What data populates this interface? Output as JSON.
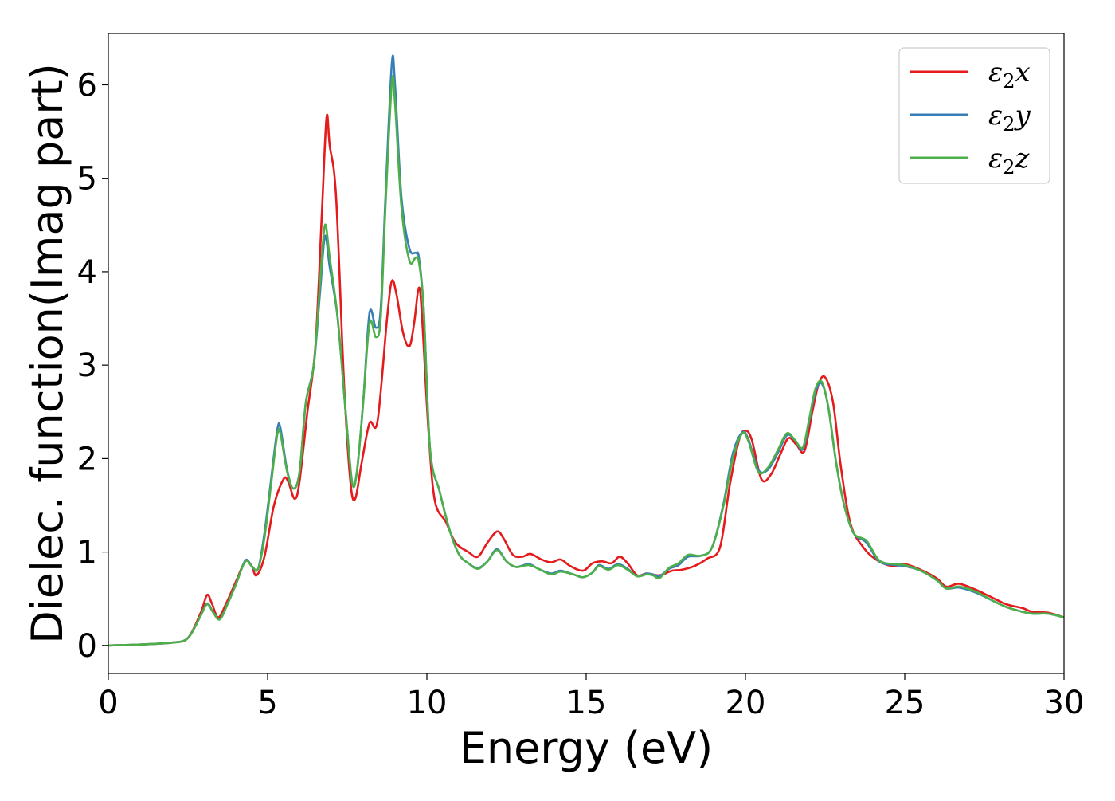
{
  "chart_data": {
    "type": "line",
    "title": "",
    "xlabel": "Energy (eV)",
    "ylabel": "Dielec. function(Imag part)",
    "xlim": [
      0,
      30
    ],
    "ylim": [
      -0.3,
      6.55
    ],
    "xticks": [
      0,
      5,
      10,
      15,
      20,
      25,
      30
    ],
    "yticks": [
      0,
      1,
      2,
      3,
      4,
      5,
      6
    ],
    "grid": false,
    "legend_position": "top-right",
    "series": [
      {
        "name": "ε₂x",
        "legend": {
          "base": "ε",
          "sub": "2",
          "suffix": "x"
        },
        "color": "#e41a1c",
        "points": [
          [
            0,
            0
          ],
          [
            1,
            0.01
          ],
          [
            2,
            0.03
          ],
          [
            2.5,
            0.08
          ],
          [
            2.9,
            0.35
          ],
          [
            3.1,
            0.54
          ],
          [
            3.25,
            0.45
          ],
          [
            3.45,
            0.3
          ],
          [
            3.7,
            0.45
          ],
          [
            4.0,
            0.68
          ],
          [
            4.3,
            0.9
          ],
          [
            4.5,
            0.85
          ],
          [
            4.65,
            0.75
          ],
          [
            4.9,
            0.95
          ],
          [
            5.2,
            1.5
          ],
          [
            5.5,
            1.78
          ],
          [
            5.65,
            1.75
          ],
          [
            5.85,
            1.57
          ],
          [
            6.0,
            1.75
          ],
          [
            6.25,
            2.5
          ],
          [
            6.5,
            3.2
          ],
          [
            6.7,
            4.6
          ],
          [
            6.85,
            5.65
          ],
          [
            6.95,
            5.35
          ],
          [
            7.15,
            4.8
          ],
          [
            7.4,
            2.8
          ],
          [
            7.6,
            1.75
          ],
          [
            7.75,
            1.57
          ],
          [
            7.95,
            1.95
          ],
          [
            8.2,
            2.38
          ],
          [
            8.45,
            2.4
          ],
          [
            8.75,
            3.5
          ],
          [
            8.9,
            3.9
          ],
          [
            9.05,
            3.75
          ],
          [
            9.25,
            3.35
          ],
          [
            9.45,
            3.2
          ],
          [
            9.6,
            3.45
          ],
          [
            9.75,
            3.83
          ],
          [
            9.85,
            3.5
          ],
          [
            10.05,
            2.3
          ],
          [
            10.25,
            1.55
          ],
          [
            10.6,
            1.32
          ],
          [
            10.9,
            1.1
          ],
          [
            11.3,
            1.0
          ],
          [
            11.6,
            0.95
          ],
          [
            11.9,
            1.1
          ],
          [
            12.2,
            1.22
          ],
          [
            12.4,
            1.15
          ],
          [
            12.7,
            0.97
          ],
          [
            13.0,
            0.95
          ],
          [
            13.25,
            0.98
          ],
          [
            13.6,
            0.92
          ],
          [
            13.9,
            0.89
          ],
          [
            14.2,
            0.92
          ],
          [
            14.5,
            0.85
          ],
          [
            14.9,
            0.8
          ],
          [
            15.2,
            0.88
          ],
          [
            15.5,
            0.9
          ],
          [
            15.8,
            0.88
          ],
          [
            16.05,
            0.95
          ],
          [
            16.3,
            0.88
          ],
          [
            16.6,
            0.75
          ],
          [
            16.9,
            0.77
          ],
          [
            17.3,
            0.75
          ],
          [
            17.7,
            0.8
          ],
          [
            18.0,
            0.81
          ],
          [
            18.4,
            0.85
          ],
          [
            18.8,
            0.93
          ],
          [
            19.2,
            1.05
          ],
          [
            19.5,
            1.7
          ],
          [
            19.8,
            2.2
          ],
          [
            20.0,
            2.3
          ],
          [
            20.2,
            2.2
          ],
          [
            20.5,
            1.78
          ],
          [
            20.8,
            1.83
          ],
          [
            21.1,
            2.05
          ],
          [
            21.35,
            2.22
          ],
          [
            21.6,
            2.15
          ],
          [
            21.85,
            2.08
          ],
          [
            22.1,
            2.5
          ],
          [
            22.3,
            2.8
          ],
          [
            22.5,
            2.87
          ],
          [
            22.75,
            2.6
          ],
          [
            23.0,
            1.9
          ],
          [
            23.3,
            1.3
          ],
          [
            23.7,
            1.05
          ],
          [
            24.1,
            0.92
          ],
          [
            24.6,
            0.85
          ],
          [
            25.0,
            0.87
          ],
          [
            25.5,
            0.81
          ],
          [
            26.0,
            0.72
          ],
          [
            26.3,
            0.63
          ],
          [
            26.7,
            0.66
          ],
          [
            27.2,
            0.6
          ],
          [
            27.7,
            0.52
          ],
          [
            28.2,
            0.44
          ],
          [
            28.7,
            0.4
          ],
          [
            29.0,
            0.36
          ],
          [
            29.5,
            0.35
          ],
          [
            30.0,
            0.3
          ]
        ]
      },
      {
        "name": "ε₂y",
        "legend": {
          "base": "ε",
          "sub": "2",
          "suffix": "y"
        },
        "color": "#377eb8",
        "points": [
          [
            0,
            0
          ],
          [
            1,
            0.01
          ],
          [
            2,
            0.03
          ],
          [
            2.5,
            0.08
          ],
          [
            2.9,
            0.32
          ],
          [
            3.1,
            0.45
          ],
          [
            3.3,
            0.35
          ],
          [
            3.5,
            0.28
          ],
          [
            3.75,
            0.45
          ],
          [
            4.0,
            0.65
          ],
          [
            4.3,
            0.91
          ],
          [
            4.5,
            0.85
          ],
          [
            4.7,
            0.82
          ],
          [
            4.9,
            1.2
          ],
          [
            5.1,
            1.75
          ],
          [
            5.3,
            2.3
          ],
          [
            5.4,
            2.33
          ],
          [
            5.6,
            1.9
          ],
          [
            5.8,
            1.68
          ],
          [
            6.0,
            1.85
          ],
          [
            6.2,
            2.6
          ],
          [
            6.45,
            3.0
          ],
          [
            6.65,
            3.8
          ],
          [
            6.8,
            4.38
          ],
          [
            6.95,
            4.05
          ],
          [
            7.2,
            3.5
          ],
          [
            7.45,
            2.5
          ],
          [
            7.65,
            1.75
          ],
          [
            7.8,
            1.85
          ],
          [
            8.0,
            2.6
          ],
          [
            8.2,
            3.56
          ],
          [
            8.4,
            3.4
          ],
          [
            8.55,
            3.6
          ],
          [
            8.7,
            4.8
          ],
          [
            8.9,
            6.23
          ],
          [
            9.0,
            6.0
          ],
          [
            9.2,
            4.8
          ],
          [
            9.45,
            4.25
          ],
          [
            9.65,
            4.2
          ],
          [
            9.75,
            4.15
          ],
          [
            9.9,
            3.6
          ],
          [
            10.1,
            2.1
          ],
          [
            10.4,
            1.65
          ],
          [
            10.7,
            1.25
          ],
          [
            11.0,
            0.98
          ],
          [
            11.3,
            0.88
          ],
          [
            11.6,
            0.83
          ],
          [
            11.9,
            0.9
          ],
          [
            12.2,
            1.03
          ],
          [
            12.5,
            0.9
          ],
          [
            12.8,
            0.84
          ],
          [
            13.2,
            0.87
          ],
          [
            13.5,
            0.82
          ],
          [
            13.9,
            0.77
          ],
          [
            14.2,
            0.8
          ],
          [
            14.6,
            0.76
          ],
          [
            14.9,
            0.73
          ],
          [
            15.2,
            0.78
          ],
          [
            15.4,
            0.86
          ],
          [
            15.7,
            0.82
          ],
          [
            16.0,
            0.87
          ],
          [
            16.3,
            0.82
          ],
          [
            16.6,
            0.74
          ],
          [
            16.9,
            0.77
          ],
          [
            17.1,
            0.76
          ],
          [
            17.3,
            0.74
          ],
          [
            17.6,
            0.82
          ],
          [
            17.9,
            0.86
          ],
          [
            18.2,
            0.95
          ],
          [
            18.6,
            0.96
          ],
          [
            18.95,
            1.05
          ],
          [
            19.3,
            1.5
          ],
          [
            19.6,
            2.05
          ],
          [
            19.9,
            2.28
          ],
          [
            20.1,
            2.2
          ],
          [
            20.4,
            1.88
          ],
          [
            20.7,
            1.88
          ],
          [
            21.0,
            2.05
          ],
          [
            21.3,
            2.25
          ],
          [
            21.55,
            2.2
          ],
          [
            21.8,
            2.1
          ],
          [
            22.0,
            2.4
          ],
          [
            22.2,
            2.72
          ],
          [
            22.4,
            2.8
          ],
          [
            22.6,
            2.55
          ],
          [
            22.85,
            1.95
          ],
          [
            23.1,
            1.5
          ],
          [
            23.4,
            1.2
          ],
          [
            23.8,
            1.1
          ],
          [
            24.2,
            0.9
          ],
          [
            24.7,
            0.86
          ],
          [
            25.0,
            0.85
          ],
          [
            25.5,
            0.8
          ],
          [
            26.0,
            0.7
          ],
          [
            26.3,
            0.61
          ],
          [
            26.7,
            0.62
          ],
          [
            27.2,
            0.57
          ],
          [
            27.7,
            0.49
          ],
          [
            28.2,
            0.41
          ],
          [
            28.7,
            0.36
          ],
          [
            29.0,
            0.34
          ],
          [
            29.5,
            0.34
          ],
          [
            30.0,
            0.3
          ]
        ]
      },
      {
        "name": "ε₂z",
        "legend": {
          "base": "ε",
          "sub": "2",
          "suffix": "z"
        },
        "color": "#4daf4a",
        "points": [
          [
            0,
            0
          ],
          [
            1,
            0.01
          ],
          [
            2,
            0.03
          ],
          [
            2.5,
            0.08
          ],
          [
            2.9,
            0.32
          ],
          [
            3.1,
            0.44
          ],
          [
            3.3,
            0.35
          ],
          [
            3.5,
            0.28
          ],
          [
            3.75,
            0.45
          ],
          [
            4.0,
            0.65
          ],
          [
            4.3,
            0.9
          ],
          [
            4.5,
            0.85
          ],
          [
            4.7,
            0.82
          ],
          [
            4.9,
            1.15
          ],
          [
            5.1,
            1.7
          ],
          [
            5.3,
            2.25
          ],
          [
            5.4,
            2.27
          ],
          [
            5.6,
            1.88
          ],
          [
            5.8,
            1.68
          ],
          [
            6.0,
            1.85
          ],
          [
            6.2,
            2.6
          ],
          [
            6.45,
            3.0
          ],
          [
            6.65,
            3.9
          ],
          [
            6.8,
            4.5
          ],
          [
            6.95,
            4.15
          ],
          [
            7.2,
            3.5
          ],
          [
            7.45,
            2.5
          ],
          [
            7.65,
            1.75
          ],
          [
            7.8,
            1.85
          ],
          [
            8.0,
            2.6
          ],
          [
            8.2,
            3.45
          ],
          [
            8.4,
            3.3
          ],
          [
            8.55,
            3.5
          ],
          [
            8.7,
            4.7
          ],
          [
            8.9,
            6.02
          ],
          [
            9.0,
            5.8
          ],
          [
            9.2,
            4.7
          ],
          [
            9.45,
            4.12
          ],
          [
            9.65,
            4.15
          ],
          [
            9.75,
            4.1
          ],
          [
            9.9,
            3.6
          ],
          [
            10.1,
            2.1
          ],
          [
            10.4,
            1.65
          ],
          [
            10.7,
            1.25
          ],
          [
            11.0,
            0.98
          ],
          [
            11.3,
            0.88
          ],
          [
            11.6,
            0.82
          ],
          [
            11.9,
            0.9
          ],
          [
            12.2,
            1.02
          ],
          [
            12.5,
            0.9
          ],
          [
            12.8,
            0.84
          ],
          [
            13.2,
            0.86
          ],
          [
            13.5,
            0.82
          ],
          [
            13.9,
            0.76
          ],
          [
            14.2,
            0.79
          ],
          [
            14.6,
            0.76
          ],
          [
            14.9,
            0.73
          ],
          [
            15.2,
            0.78
          ],
          [
            15.4,
            0.85
          ],
          [
            15.7,
            0.81
          ],
          [
            16.0,
            0.86
          ],
          [
            16.3,
            0.81
          ],
          [
            16.6,
            0.74
          ],
          [
            16.9,
            0.76
          ],
          [
            17.1,
            0.75
          ],
          [
            17.3,
            0.72
          ],
          [
            17.6,
            0.83
          ],
          [
            17.9,
            0.88
          ],
          [
            18.2,
            0.97
          ],
          [
            18.6,
            0.96
          ],
          [
            18.95,
            1.05
          ],
          [
            19.3,
            1.48
          ],
          [
            19.6,
            2.0
          ],
          [
            19.9,
            2.27
          ],
          [
            20.1,
            2.18
          ],
          [
            20.4,
            1.86
          ],
          [
            20.7,
            1.9
          ],
          [
            21.0,
            2.08
          ],
          [
            21.3,
            2.27
          ],
          [
            21.55,
            2.2
          ],
          [
            21.8,
            2.12
          ],
          [
            22.0,
            2.42
          ],
          [
            22.2,
            2.75
          ],
          [
            22.4,
            2.82
          ],
          [
            22.6,
            2.55
          ],
          [
            22.85,
            1.95
          ],
          [
            23.1,
            1.5
          ],
          [
            23.4,
            1.2
          ],
          [
            23.8,
            1.12
          ],
          [
            24.2,
            0.91
          ],
          [
            24.7,
            0.87
          ],
          [
            25.0,
            0.86
          ],
          [
            25.5,
            0.8
          ],
          [
            26.0,
            0.7
          ],
          [
            26.3,
            0.61
          ],
          [
            26.7,
            0.63
          ],
          [
            27.2,
            0.58
          ],
          [
            27.7,
            0.49
          ],
          [
            28.2,
            0.41
          ],
          [
            28.7,
            0.36
          ],
          [
            29.0,
            0.34
          ],
          [
            29.5,
            0.34
          ],
          [
            30.0,
            0.3
          ]
        ]
      }
    ]
  }
}
